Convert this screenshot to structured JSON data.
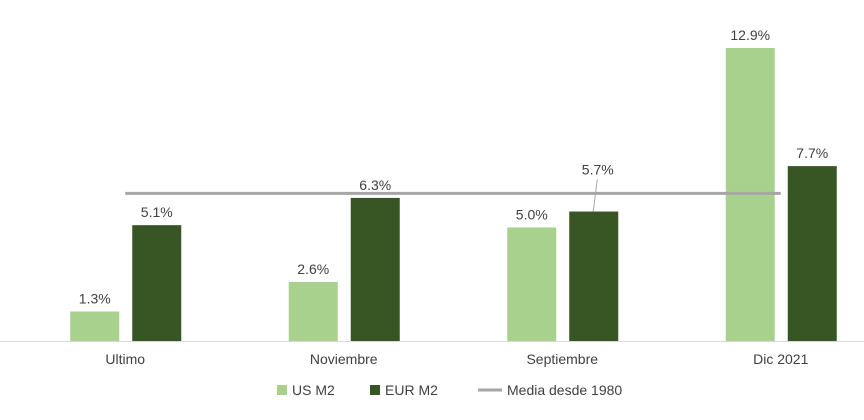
{
  "chart_data": {
    "type": "bar",
    "title": "",
    "xlabel": "",
    "ylabel": "",
    "categories": [
      "Ultimo",
      "Noviembre",
      "Septiembre",
      "Dic 2021"
    ],
    "series": [
      {
        "name": "US M2",
        "color": "#a9d18e",
        "values": [
          1.3,
          2.6,
          5.0,
          12.9
        ],
        "labels": [
          "1.3%",
          "2.6%",
          "5.0%",
          "12.9%"
        ]
      },
      {
        "name": "EUR M2",
        "color": "#375623",
        "values": [
          5.1,
          6.3,
          5.7,
          7.7
        ],
        "labels": [
          "5.1%",
          "6.3%",
          "5.7%",
          "7.7%"
        ]
      }
    ],
    "reference_line": {
      "name": "Media desde 1980",
      "color": "#a6a6a6",
      "value": 6.5
    },
    "ylim": [
      0,
      12.9
    ],
    "grid": false,
    "legend": "bottom-center"
  }
}
